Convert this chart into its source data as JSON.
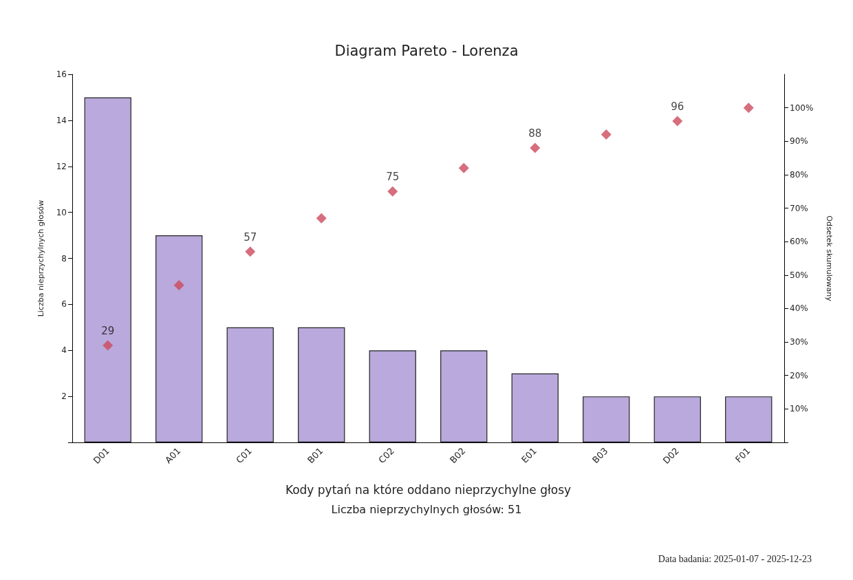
{
  "chart_data": {
    "type": "bar",
    "title": "Diagram Pareto - Lorenza",
    "xlabel": "Kody pytań na które oddano nieprzychylne głosy",
    "ylabel": "Liczba nieprzychylnych głosów",
    "y2label": "Odsetek skumulowany",
    "categories": [
      "D01",
      "A01",
      "C01",
      "B01",
      "C02",
      "B02",
      "E01",
      "B03",
      "D02",
      "F01"
    ],
    "series": [
      {
        "color": "#b9a9dc",
        "values": [
          15,
          9,
          5,
          5,
          4,
          4,
          3,
          2,
          2,
          2
        ]
      },
      {
        "type": "scatter",
        "axis": "y2",
        "color": "#cc4a5c",
        "marker": "diamond",
        "values": [
          29,
          47,
          57,
          67,
          75,
          82,
          88,
          92,
          96,
          100
        ],
        "value_labels": [
          "29",
          null,
          "57",
          null,
          "75",
          null,
          "88",
          null,
          "96",
          null
        ]
      }
    ],
    "ylim": [
      0,
      16
    ],
    "yticks": [
      {
        "value": 0,
        "label": null
      },
      2,
      4,
      6,
      8,
      10,
      12,
      14,
      16
    ],
    "y2lim": [
      0,
      110
    ],
    "y2ticks": [
      {
        "value": 0,
        "label": null
      },
      {
        "value": 10,
        "label": "10%"
      },
      {
        "value": 20,
        "label": "20%"
      },
      {
        "value": 30,
        "label": "30%"
      },
      {
        "value": 40,
        "label": "40%"
      },
      {
        "value": 50,
        "label": "50%"
      },
      {
        "value": 60,
        "label": "60%"
      },
      {
        "value": 70,
        "label": "70%"
      },
      {
        "value": 80,
        "label": "80%"
      },
      {
        "value": 90,
        "label": "90%"
      },
      {
        "value": 100,
        "label": "100%"
      }
    ],
    "grid": false,
    "annotations": [
      "Liczba nieprzychylnych głosów: 51",
      "Data badania: 2025-01-07 - 2025-12-23"
    ]
  }
}
